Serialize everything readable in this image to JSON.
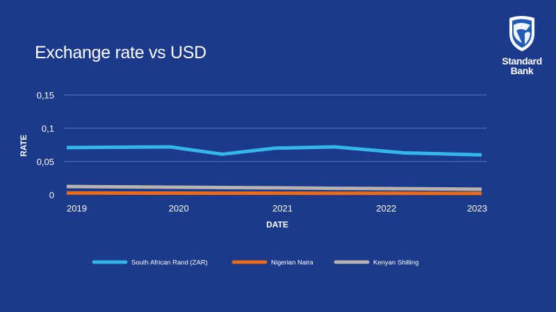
{
  "brand": {
    "name": "Standard Bank",
    "line1": "Standard",
    "line2": "Bank",
    "background": "#1c3a8c"
  },
  "chart_data": {
    "type": "line",
    "title": "Exchange rate vs USD",
    "xlabel": "DATE",
    "ylabel": "RATE",
    "x": [
      "2019-01",
      "2020-01",
      "2020-07",
      "2021-01",
      "2021-08",
      "2022-04",
      "2023-01"
    ],
    "x_ticks": [
      {
        "label": "2019",
        "date": "2019-01"
      },
      {
        "label": "2020",
        "date": "2020-01"
      },
      {
        "label": "2021",
        "date": "2021-01"
      },
      {
        "label": "2022",
        "date": "2022-01"
      },
      {
        "label": "2023",
        "date": "2023-01"
      }
    ],
    "y_ticks": [
      "0",
      "0,05",
      "0,1",
      "0,15"
    ],
    "ylim": [
      0,
      0.15
    ],
    "grid": true,
    "legend_position": "bottom",
    "series": [
      {
        "name": "South African Rand (ZAR)",
        "color": "#35b6ea",
        "values": [
          0.071,
          0.072,
          0.061,
          0.07,
          0.072,
          0.063,
          0.06
        ]
      },
      {
        "name": "Nigerian Naira",
        "color": "#ef6a16",
        "values": [
          0.0027,
          0.0026,
          0.0025,
          0.0025,
          0.0024,
          0.0023,
          0.0022
        ]
      },
      {
        "name": "Kenyan Shilling",
        "color": "#b9b3ad",
        "values": [
          0.0125,
          0.0115,
          0.011,
          0.0105,
          0.0098,
          0.0092,
          0.0085
        ]
      }
    ]
  }
}
